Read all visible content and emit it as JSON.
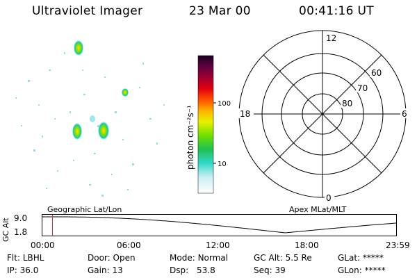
{
  "header": {
    "instrument": "Ultraviolet Imager",
    "date": "23 Mar 00",
    "time": "00:41:16 UT"
  },
  "colorbar": {
    "label": "photon cm⁻²s⁻¹",
    "ticks": [
      "100",
      "10"
    ]
  },
  "polar_plot": {
    "mlt_labels": {
      "top": "12",
      "left": "18",
      "right": "6",
      "bottom": "0"
    },
    "lat_labels": [
      "60",
      "70",
      "80"
    ]
  },
  "timeline": {
    "axis_label": "GC Alt",
    "y_ticks": [
      "9.0",
      "1.8"
    ],
    "left_title": "Geographic Lat/Lon",
    "right_title": "Apex MLat/MLT",
    "x_ticks": [
      "00:00",
      "06:00",
      "12:00",
      "18:00",
      "23:59"
    ],
    "marker_time": "00:41",
    "curve_color": "#000000",
    "marker_color": "#cc3333"
  },
  "info": {
    "row1": [
      {
        "label": "Flt:",
        "value": "LBHL"
      },
      {
        "label": "Door:",
        "value": "Open"
      },
      {
        "label": "Mode:",
        "value": "Normal"
      },
      {
        "label": "GC Alt:",
        "value": "5.5 Re"
      },
      {
        "label": "GLat:",
        "value": "*****"
      }
    ],
    "row2": [
      {
        "label": "IP:",
        "value": "36.0"
      },
      {
        "label": "Gain:",
        "value": "13"
      },
      {
        "label": "Dsp:",
        "value": "53.8"
      },
      {
        "label": "Seq:",
        "value": "39"
      },
      {
        "label": "GLon:",
        "value": "*****"
      }
    ]
  }
}
